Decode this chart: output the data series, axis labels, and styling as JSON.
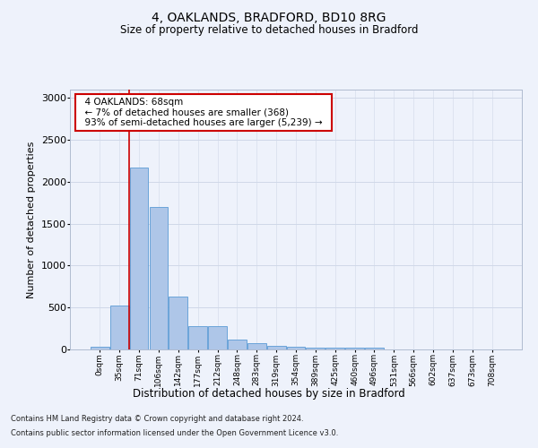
{
  "title1": "4, OAKLANDS, BRADFORD, BD10 8RG",
  "title2": "Size of property relative to detached houses in Bradford",
  "xlabel": "Distribution of detached houses by size in Bradford",
  "ylabel": "Number of detached properties",
  "footnote1": "Contains HM Land Registry data © Crown copyright and database right 2024.",
  "footnote2": "Contains public sector information licensed under the Open Government Licence v3.0.",
  "annotation_title": "4 OAKLANDS: 68sqm",
  "annotation_line2": "← 7% of detached houses are smaller (368)",
  "annotation_line3": "93% of semi-detached houses are larger (5,239) →",
  "bar_color": "#aec6e8",
  "bar_edge_color": "#5b9bd5",
  "vline_color": "#cc0000",
  "annotation_box_edgecolor": "#cc0000",
  "categories": [
    "0sqm",
    "35sqm",
    "71sqm",
    "106sqm",
    "142sqm",
    "177sqm",
    "212sqm",
    "248sqm",
    "283sqm",
    "319sqm",
    "354sqm",
    "389sqm",
    "425sqm",
    "460sqm",
    "496sqm",
    "531sqm",
    "566sqm",
    "602sqm",
    "637sqm",
    "673sqm",
    "708sqm"
  ],
  "values": [
    30,
    520,
    2170,
    1700,
    635,
    280,
    275,
    120,
    70,
    40,
    30,
    20,
    25,
    20,
    20,
    0,
    0,
    0,
    0,
    0,
    0
  ],
  "ylim": [
    0,
    3100
  ],
  "yticks": [
    0,
    500,
    1000,
    1500,
    2000,
    2500,
    3000
  ],
  "vline_x": 1.5,
  "grid_color": "#d0d8e8",
  "background_color": "#eef2fb"
}
